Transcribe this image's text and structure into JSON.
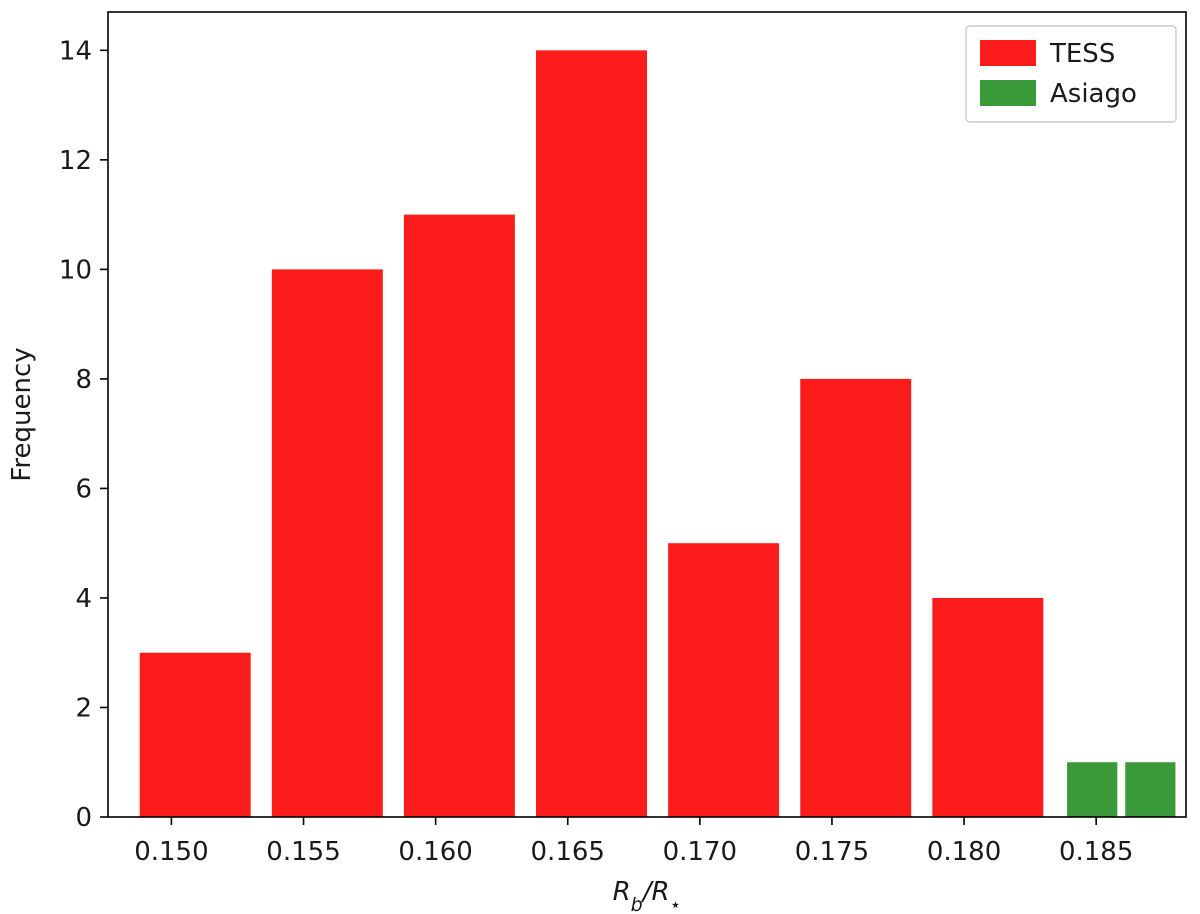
{
  "chart_data": {
    "type": "bar",
    "xlabel": {
      "base": "R",
      "sub1": "b",
      "sep": "/R",
      "sub2": "⋆"
    },
    "ylabel": "Frequency",
    "xlim": [
      0.1476,
      0.1884
    ],
    "ylim": [
      0,
      14.7
    ],
    "xticks": [
      "0.150",
      "0.155",
      "0.160",
      "0.165",
      "0.170",
      "0.175",
      "0.180",
      "0.185"
    ],
    "yticks": [
      "0",
      "2",
      "4",
      "6",
      "8",
      "10",
      "12",
      "14"
    ],
    "legend_position": "top-right",
    "grid": false,
    "series": [
      {
        "name": "TESS",
        "color": "#fc1c1c",
        "bars": [
          {
            "x0": 0.1488,
            "x1": 0.153,
            "value": 3
          },
          {
            "x0": 0.1538,
            "x1": 0.158,
            "value": 10
          },
          {
            "x0": 0.1588,
            "x1": 0.163,
            "value": 11
          },
          {
            "x0": 0.1638,
            "x1": 0.168,
            "value": 14
          },
          {
            "x0": 0.1688,
            "x1": 0.173,
            "value": 5
          },
          {
            "x0": 0.1738,
            "x1": 0.178,
            "value": 8
          },
          {
            "x0": 0.1788,
            "x1": 0.183,
            "value": 4
          }
        ]
      },
      {
        "name": "Asiago",
        "color": "#3a9a3a",
        "bars": [
          {
            "x0": 0.1839,
            "x1": 0.1858,
            "value": 1
          },
          {
            "x0": 0.1861,
            "x1": 0.188,
            "value": 1
          }
        ]
      }
    ]
  }
}
